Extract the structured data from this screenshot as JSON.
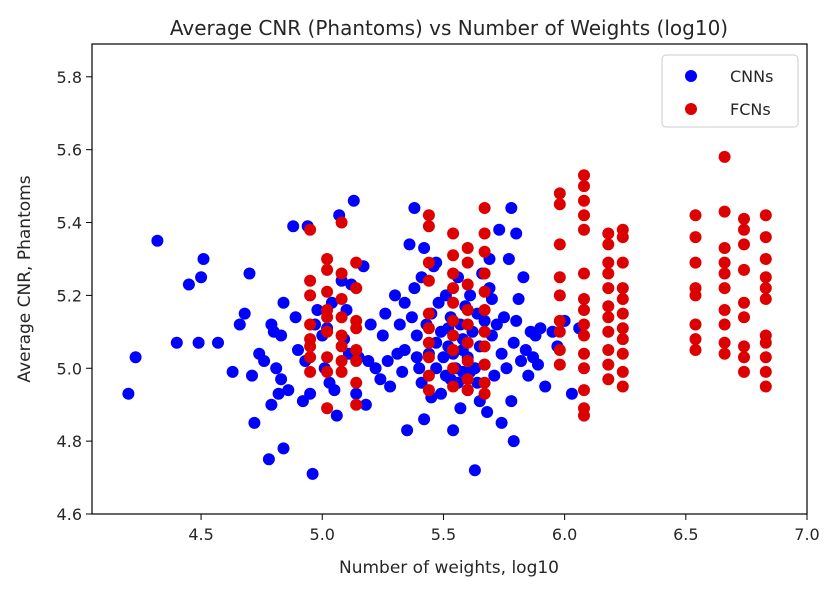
{
  "chart_data": {
    "type": "scatter",
    "title": "Average CNR (Phantoms) vs Number of Weights (log10)",
    "xlabel": "Number of weights, log10",
    "ylabel": "Average CNR, Phantoms",
    "xlim": [
      4.05,
      7.0
    ],
    "ylim": [
      4.6,
      5.89
    ],
    "xticks": [
      "4.5",
      "5.0",
      "5.5",
      "6.0",
      "6.5",
      "7.0"
    ],
    "yticks": [
      "4.6",
      "4.8",
      "5.0",
      "5.2",
      "5.4",
      "5.6",
      "5.8"
    ],
    "grid": false,
    "legend_position": "top-right",
    "series": [
      {
        "name": "CNNs",
        "color": "#0000ff",
        "points": [
          [
            4.2,
            4.93
          ],
          [
            4.23,
            5.03
          ],
          [
            4.32,
            5.35
          ],
          [
            4.4,
            5.07
          ],
          [
            4.45,
            5.23
          ],
          [
            4.49,
            5.07
          ],
          [
            4.5,
            5.25
          ],
          [
            4.51,
            5.3
          ],
          [
            4.57,
            5.07
          ],
          [
            4.63,
            4.99
          ],
          [
            4.66,
            5.12
          ],
          [
            4.68,
            5.15
          ],
          [
            4.7,
            5.26
          ],
          [
            4.71,
            4.98
          ],
          [
            4.72,
            4.85
          ],
          [
            4.74,
            5.04
          ],
          [
            4.76,
            5.02
          ],
          [
            4.78,
            4.75
          ],
          [
            4.79,
            4.9
          ],
          [
            4.79,
            5.12
          ],
          [
            4.8,
            5.1
          ],
          [
            4.81,
            5.0
          ],
          [
            4.82,
            4.93
          ],
          [
            4.83,
            4.97
          ],
          [
            4.83,
            5.09
          ],
          [
            4.84,
            5.18
          ],
          [
            4.84,
            4.78
          ],
          [
            4.86,
            4.94
          ],
          [
            4.88,
            5.39
          ],
          [
            4.89,
            5.14
          ],
          [
            4.9,
            5.05
          ],
          [
            4.92,
            4.91
          ],
          [
            4.93,
            5.02
          ],
          [
            4.94,
            5.39
          ],
          [
            4.95,
            4.93
          ],
          [
            4.96,
            4.71
          ],
          [
            4.97,
            5.12
          ],
          [
            4.98,
            5.16
          ],
          [
            5.0,
            5.09
          ],
          [
            5.01,
            5.0
          ],
          [
            5.02,
            5.11
          ],
          [
            5.03,
            4.96
          ],
          [
            5.04,
            5.18
          ],
          [
            5.05,
            4.94
          ],
          [
            5.06,
            4.87
          ],
          [
            5.07,
            5.42
          ],
          [
            5.08,
            5.24
          ],
          [
            5.09,
            5.08
          ],
          [
            5.1,
            5.16
          ],
          [
            5.11,
            5.04
          ],
          [
            5.12,
            5.23
          ],
          [
            5.13,
            5.46
          ],
          [
            5.14,
            4.93
          ],
          [
            5.15,
            5.03
          ],
          [
            5.17,
            5.28
          ],
          [
            5.18,
            4.9
          ],
          [
            5.19,
            5.02
          ],
          [
            5.2,
            5.12
          ],
          [
            5.22,
            5.0
          ],
          [
            5.24,
            4.97
          ],
          [
            5.25,
            5.09
          ],
          [
            5.26,
            5.15
          ],
          [
            5.27,
            5.02
          ],
          [
            5.28,
            4.95
          ],
          [
            5.3,
            5.2
          ],
          [
            5.31,
            5.04
          ],
          [
            5.32,
            5.12
          ],
          [
            5.33,
            4.99
          ],
          [
            5.34,
            5.05
          ],
          [
            5.35,
            4.83
          ],
          [
            5.36,
            5.34
          ],
          [
            5.37,
            5.14
          ],
          [
            5.38,
            5.44
          ],
          [
            5.38,
            5.22
          ],
          [
            5.39,
            5.09
          ],
          [
            5.4,
            5.0
          ],
          [
            5.41,
            5.25
          ],
          [
            5.41,
            4.96
          ],
          [
            5.42,
            5.33
          ],
          [
            5.42,
            4.86
          ],
          [
            5.43,
            5.12
          ],
          [
            5.44,
            5.04
          ],
          [
            5.45,
            5.15
          ],
          [
            5.45,
            4.92
          ],
          [
            5.46,
            5.28
          ],
          [
            5.47,
            5.07
          ],
          [
            5.47,
            5.0
          ],
          [
            5.48,
            5.18
          ],
          [
            5.49,
            4.93
          ],
          [
            5.49,
            5.1
          ],
          [
            5.5,
            5.03
          ],
          [
            5.51,
            4.98
          ],
          [
            5.51,
            5.2
          ],
          [
            5.52,
            5.11
          ],
          [
            5.52,
            5.06
          ],
          [
            5.53,
            4.97
          ],
          [
            5.53,
            5.14
          ],
          [
            5.54,
            4.83
          ],
          [
            5.54,
            5.04
          ],
          [
            5.55,
            5.0
          ],
          [
            5.56,
            5.25
          ],
          [
            5.56,
            4.96
          ],
          [
            5.57,
            5.12
          ],
          [
            5.57,
            4.89
          ],
          [
            5.58,
            5.08
          ],
          [
            5.58,
            4.99
          ],
          [
            5.59,
            5.17
          ],
          [
            5.6,
            4.94
          ],
          [
            5.6,
            5.03
          ],
          [
            5.61,
            5.2
          ],
          [
            5.62,
            5.1
          ],
          [
            5.63,
            5.0
          ],
          [
            5.63,
            4.72
          ],
          [
            5.64,
            4.96
          ],
          [
            5.64,
            5.15
          ],
          [
            5.65,
            5.06
          ],
          [
            5.65,
            4.91
          ],
          [
            5.66,
            5.26
          ],
          [
            5.67,
            5.13
          ],
          [
            5.67,
            5.01
          ],
          [
            5.68,
            4.88
          ],
          [
            5.69,
            5.3
          ],
          [
            5.7,
            5.09
          ],
          [
            5.7,
            5.19
          ],
          [
            5.71,
            4.98
          ],
          [
            5.72,
            5.12
          ],
          [
            5.73,
            5.38
          ],
          [
            5.74,
            4.85
          ],
          [
            5.74,
            5.04
          ],
          [
            5.75,
            5.14
          ],
          [
            5.76,
            5.0
          ],
          [
            5.77,
            5.3
          ],
          [
            5.78,
            5.44
          ],
          [
            5.78,
            4.91
          ],
          [
            5.79,
            4.8
          ],
          [
            5.79,
            5.07
          ],
          [
            5.8,
            5.37
          ],
          [
            5.8,
            5.13
          ],
          [
            5.81,
            5.19
          ],
          [
            5.82,
            5.02
          ],
          [
            5.83,
            5.25
          ],
          [
            5.84,
            5.05
          ],
          [
            5.85,
            4.98
          ],
          [
            5.86,
            5.1
          ],
          [
            5.87,
            5.03
          ],
          [
            5.88,
            5.09
          ],
          [
            5.89,
            5.01
          ],
          [
            5.9,
            5.11
          ],
          [
            5.92,
            4.95
          ],
          [
            5.95,
            5.1
          ],
          [
            5.97,
            5.06
          ],
          [
            6.0,
            5.13
          ],
          [
            6.03,
            4.93
          ],
          [
            6.06,
            5.11
          ],
          [
            5.34,
            5.18
          ],
          [
            5.39,
            5.03
          ],
          [
            5.47,
            5.29
          ],
          [
            5.58,
            5.05
          ],
          [
            5.61,
            4.99
          ],
          [
            5.69,
            5.22
          ]
        ]
      },
      {
        "name": "FCNs",
        "color": "#dd0000",
        "points": [
          [
            4.95,
            5.38
          ],
          [
            4.95,
            5.24
          ],
          [
            4.95,
            5.2
          ],
          [
            4.95,
            5.12
          ],
          [
            4.95,
            5.08
          ],
          [
            4.95,
            5.03
          ],
          [
            4.95,
            4.99
          ],
          [
            4.95,
            5.06
          ],
          [
            5.02,
            5.3
          ],
          [
            5.02,
            5.27
          ],
          [
            5.02,
            5.21
          ],
          [
            5.02,
            5.16
          ],
          [
            5.02,
            5.14
          ],
          [
            5.02,
            5.1
          ],
          [
            5.02,
            5.03
          ],
          [
            5.02,
            4.99
          ],
          [
            5.02,
            4.89
          ],
          [
            5.08,
            5.4
          ],
          [
            5.08,
            5.26
          ],
          [
            5.08,
            5.19
          ],
          [
            5.08,
            5.14
          ],
          [
            5.08,
            5.09
          ],
          [
            5.08,
            5.06
          ],
          [
            5.08,
            5.02
          ],
          [
            5.08,
            4.99
          ],
          [
            5.14,
            5.29
          ],
          [
            5.14,
            5.22
          ],
          [
            5.14,
            5.13
          ],
          [
            5.14,
            5.11
          ],
          [
            5.14,
            5.05
          ],
          [
            5.14,
            5.02
          ],
          [
            5.14,
            4.96
          ],
          [
            5.14,
            4.9
          ],
          [
            5.44,
            5.42
          ],
          [
            5.44,
            5.39
          ],
          [
            5.44,
            5.29
          ],
          [
            5.44,
            5.24
          ],
          [
            5.44,
            5.15
          ],
          [
            5.44,
            5.11
          ],
          [
            5.44,
            5.07
          ],
          [
            5.44,
            5.03
          ],
          [
            5.44,
            4.98
          ],
          [
            5.44,
            4.94
          ],
          [
            5.54,
            5.37
          ],
          [
            5.54,
            5.31
          ],
          [
            5.54,
            5.26
          ],
          [
            5.54,
            5.22
          ],
          [
            5.54,
            5.18
          ],
          [
            5.54,
            5.13
          ],
          [
            5.54,
            5.09
          ],
          [
            5.54,
            5.05
          ],
          [
            5.54,
            5.0
          ],
          [
            5.54,
            4.95
          ],
          [
            5.6,
            5.33
          ],
          [
            5.6,
            5.29
          ],
          [
            5.6,
            5.23
          ],
          [
            5.6,
            5.16
          ],
          [
            5.6,
            5.12
          ],
          [
            5.6,
            5.07
          ],
          [
            5.6,
            5.02
          ],
          [
            5.6,
            4.97
          ],
          [
            5.6,
            4.94
          ],
          [
            5.67,
            5.44
          ],
          [
            5.67,
            5.37
          ],
          [
            5.67,
            5.32
          ],
          [
            5.67,
            5.26
          ],
          [
            5.67,
            5.21
          ],
          [
            5.67,
            5.16
          ],
          [
            5.67,
            5.1
          ],
          [
            5.67,
            5.06
          ],
          [
            5.67,
            5.01
          ],
          [
            5.67,
            4.96
          ],
          [
            5.67,
            4.93
          ],
          [
            5.98,
            5.48
          ],
          [
            5.98,
            5.45
          ],
          [
            5.98,
            5.34
          ],
          [
            5.98,
            5.25
          ],
          [
            5.98,
            5.2
          ],
          [
            5.98,
            5.13
          ],
          [
            5.98,
            5.1
          ],
          [
            5.98,
            5.05
          ],
          [
            5.98,
            5.01
          ],
          [
            6.08,
            5.53
          ],
          [
            6.08,
            5.5
          ],
          [
            6.08,
            5.46
          ],
          [
            6.08,
            5.42
          ],
          [
            6.08,
            5.38
          ],
          [
            6.08,
            5.26
          ],
          [
            6.08,
            5.19
          ],
          [
            6.08,
            5.16
          ],
          [
            6.08,
            5.12
          ],
          [
            6.08,
            5.09
          ],
          [
            6.08,
            5.04
          ],
          [
            6.08,
            5.0
          ],
          [
            6.08,
            4.94
          ],
          [
            6.08,
            4.89
          ],
          [
            6.08,
            4.87
          ],
          [
            6.18,
            5.37
          ],
          [
            6.18,
            5.34
          ],
          [
            6.18,
            5.29
          ],
          [
            6.18,
            5.26
          ],
          [
            6.18,
            5.22
          ],
          [
            6.18,
            5.17
          ],
          [
            6.18,
            5.14
          ],
          [
            6.18,
            5.1
          ],
          [
            6.18,
            5.05
          ],
          [
            6.18,
            5.01
          ],
          [
            6.18,
            4.97
          ],
          [
            6.24,
            5.38
          ],
          [
            6.24,
            5.36
          ],
          [
            6.24,
            5.29
          ],
          [
            6.24,
            5.22
          ],
          [
            6.24,
            5.19
          ],
          [
            6.24,
            5.15
          ],
          [
            6.24,
            5.11
          ],
          [
            6.24,
            5.08
          ],
          [
            6.24,
            5.04
          ],
          [
            6.24,
            4.99
          ],
          [
            6.24,
            4.95
          ],
          [
            6.54,
            5.42
          ],
          [
            6.54,
            5.36
          ],
          [
            6.54,
            5.29
          ],
          [
            6.54,
            5.22
          ],
          [
            6.54,
            5.2
          ],
          [
            6.54,
            5.12
          ],
          [
            6.54,
            5.08
          ],
          [
            6.54,
            5.05
          ],
          [
            6.66,
            5.58
          ],
          [
            6.66,
            5.43
          ],
          [
            6.66,
            5.33
          ],
          [
            6.66,
            5.29
          ],
          [
            6.66,
            5.26
          ],
          [
            6.66,
            5.22
          ],
          [
            6.66,
            5.16
          ],
          [
            6.66,
            5.12
          ],
          [
            6.66,
            5.07
          ],
          [
            6.66,
            5.04
          ],
          [
            6.74,
            5.41
          ],
          [
            6.74,
            5.38
          ],
          [
            6.74,
            5.34
          ],
          [
            6.74,
            5.27
          ],
          [
            6.74,
            5.18
          ],
          [
            6.74,
            5.14
          ],
          [
            6.74,
            5.06
          ],
          [
            6.74,
            5.03
          ],
          [
            6.74,
            4.99
          ],
          [
            6.83,
            5.42
          ],
          [
            6.83,
            5.36
          ],
          [
            6.83,
            5.3
          ],
          [
            6.83,
            5.25
          ],
          [
            6.83,
            5.22
          ],
          [
            6.83,
            5.19
          ],
          [
            6.83,
            5.09
          ],
          [
            6.83,
            5.07
          ],
          [
            6.83,
            5.03
          ],
          [
            6.83,
            4.99
          ],
          [
            6.83,
            4.95
          ]
        ]
      }
    ]
  }
}
